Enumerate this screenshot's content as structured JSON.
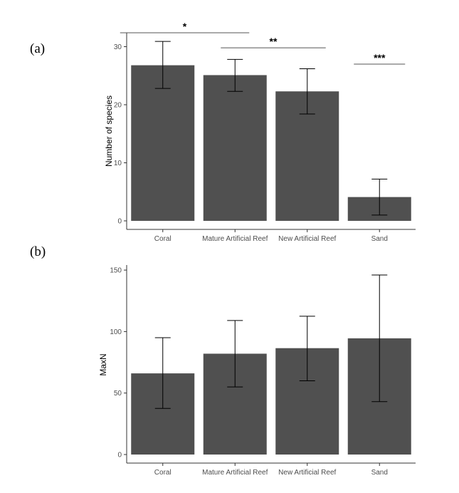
{
  "panels": {
    "a": {
      "label": "(a)"
    },
    "b": {
      "label": "(b)"
    }
  },
  "colors": {
    "bar": "#505050",
    "axis": "#333333",
    "errorbar": "#000000",
    "sigline": "#555555"
  },
  "chart_data": [
    {
      "type": "bar",
      "panel": "(a)",
      "categories": [
        "Coral",
        "Mature Artificial Reef",
        "New Artificial Reef",
        "Sand"
      ],
      "values": [
        26.8,
        25.1,
        22.3,
        4.1
      ],
      "error_low": [
        22.8,
        22.3,
        18.4,
        1.0
      ],
      "error_high": [
        30.9,
        27.8,
        26.2,
        7.2
      ],
      "title": "",
      "xlabel": "",
      "ylabel": "Number of species",
      "ylim": [
        0,
        32.5
      ],
      "yticks": [
        0,
        10,
        20,
        30
      ],
      "grid": false,
      "significance": [
        {
          "from": "Coral",
          "to": "Mature Artificial Reef",
          "y": 32.4,
          "label": "*"
        },
        {
          "from": "Mature Artificial Reef",
          "to": "New Artificial Reef",
          "y": 29.8,
          "label": "**"
        },
        {
          "from": "Sand",
          "to": "Sand",
          "y": 27.0,
          "label": "***"
        }
      ]
    },
    {
      "type": "bar",
      "panel": "(b)",
      "categories": [
        "Coral",
        "Mature Artificial Reef",
        "New Artificial Reef",
        "Sand"
      ],
      "values": [
        66,
        82,
        86.5,
        94.5
      ],
      "error_low": [
        37.5,
        55,
        60,
        43
      ],
      "error_high": [
        95,
        109,
        112.5,
        146
      ],
      "title": "",
      "xlabel": "",
      "ylabel": "MaxN",
      "ylim": [
        0,
        152
      ],
      "yticks": [
        0,
        50,
        100,
        150
      ],
      "grid": false
    }
  ]
}
